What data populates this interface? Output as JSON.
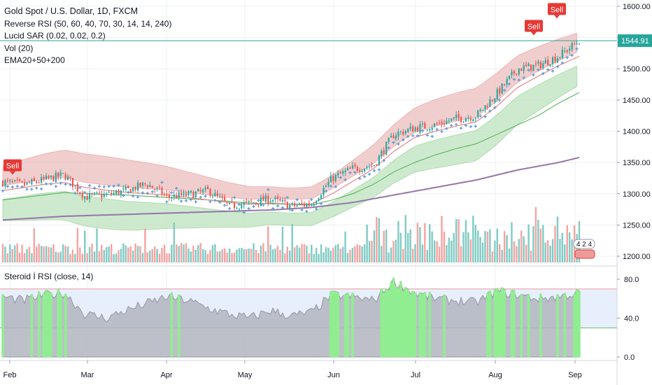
{
  "header": {
    "title": "Gold Spot / U.S. Dollar, 1D, FXCM",
    "indicators": [
      "Reverse RSI (50, 60, 40, 70, 30, 14, 14, 240)",
      "Lucid SAR (0.02, 0.02, 0.2)",
      "Vol (20)",
      "EMA20+50+200"
    ],
    "rsi_title": "Steroid İ RSI (close, 14)"
  },
  "price_axis": {
    "ticks": [
      "1600.00",
      "1550.00",
      "1500.00",
      "1450.00",
      "1400.00",
      "1350.00",
      "1300.00",
      "1250.00",
      "1200.00"
    ],
    "last_price": "1544.91"
  },
  "rsi_axis": {
    "ticks": [
      "80.0",
      "40.0",
      "0.0"
    ]
  },
  "time_axis": {
    "labels": [
      "Feb",
      "Mar",
      "Apr",
      "May",
      "Jun",
      "Jul",
      "Aug",
      "Sep"
    ]
  },
  "signals": [
    "Sell",
    "Sell",
    "Sell"
  ],
  "badge": "4 2 4",
  "colors": {
    "up": "#26a69a",
    "down": "#ef5350",
    "vol_up": "#80cbc4",
    "vol_down": "#f4a3a1",
    "ema200": "#9575a9",
    "sar": "#5b9bd5",
    "rsi_area": "#b2b5be",
    "rsi_hot": "#90ee90",
    "band_upper": "#e9b4b4",
    "band_lower": "#b3dfb3",
    "rsi_zone": "#e8effc",
    "last_line": "#26a69a"
  },
  "chart_data": [
    {
      "type": "candlestick",
      "title": "Gold Spot / U.S. Dollar, 1D, FXCM",
      "xlabel": "",
      "ylabel": "",
      "x_ticks": [
        "Feb",
        "Mar",
        "Apr",
        "May",
        "Jun",
        "Jul",
        "Aug",
        "Sep"
      ],
      "ylim": [
        1190,
        1610
      ],
      "last_price": 1544.91,
      "series": [
        {
          "name": "close (weekly)",
          "x": [
            "Feb",
            "Feb",
            "Feb",
            "Feb",
            "Mar",
            "Mar",
            "Mar",
            "Mar",
            "Apr",
            "Apr",
            "Apr",
            "Apr",
            "May",
            "May",
            "May",
            "May",
            "Jun",
            "Jun",
            "Jun",
            "Jun",
            "Jul",
            "Jul",
            "Jul",
            "Jul",
            "Aug",
            "Aug",
            "Aug",
            "Aug",
            "Sep"
          ],
          "values": [
            1319,
            1314,
            1322,
            1330,
            1295,
            1298,
            1305,
            1316,
            1295,
            1298,
            1305,
            1280,
            1285,
            1292,
            1280,
            1284,
            1325,
            1340,
            1345,
            1395,
            1405,
            1410,
            1420,
            1425,
            1460,
            1500,
            1505,
            1520,
            1545
          ]
        },
        {
          "name": "EMA20",
          "values": [
            1305,
            1310,
            1315,
            1318,
            1310,
            1306,
            1302,
            1300,
            1298,
            1294,
            1290,
            1286,
            1283,
            1285,
            1283,
            1284,
            1300,
            1320,
            1340,
            1368,
            1390,
            1400,
            1408,
            1415,
            1440,
            1470,
            1488,
            1505,
            1520
          ]
        },
        {
          "name": "EMA50",
          "values": [
            1290,
            1294,
            1298,
            1302,
            1300,
            1299,
            1298,
            1296,
            1294,
            1292,
            1290,
            1288,
            1285,
            1284,
            1283,
            1282,
            1290,
            1300,
            1315,
            1335,
            1350,
            1362,
            1372,
            1380,
            1395,
            1410,
            1425,
            1445,
            1462
          ]
        },
        {
          "name": "EMA200",
          "values": [
            1258,
            1260,
            1262,
            1264,
            1265,
            1266,
            1267,
            1268,
            1269,
            1270,
            1271,
            1272,
            1273,
            1274,
            1276,
            1278,
            1282,
            1286,
            1292,
            1298,
            1304,
            1310,
            1316,
            1322,
            1330,
            1338,
            1344,
            1350,
            1358
          ]
        }
      ],
      "signals": [
        {
          "x": "Feb",
          "label": "Sell"
        },
        {
          "x": "Aug",
          "label": "Sell"
        },
        {
          "x": "Aug",
          "label": "Sell"
        }
      ]
    },
    {
      "type": "area",
      "title": "Steroid İ RSI (close, 14)",
      "ylim": [
        0,
        90
      ],
      "y_ticks": [
        80,
        40,
        0
      ],
      "levels": [
        70,
        30
      ],
      "series": [
        {
          "name": "RSI",
          "values": [
            62,
            58,
            64,
            66,
            44,
            40,
            48,
            55,
            62,
            58,
            50,
            44,
            40,
            48,
            42,
            46,
            64,
            62,
            58,
            78,
            66,
            60,
            58,
            56,
            68,
            64,
            60,
            62,
            66
          ]
        }
      ]
    }
  ]
}
